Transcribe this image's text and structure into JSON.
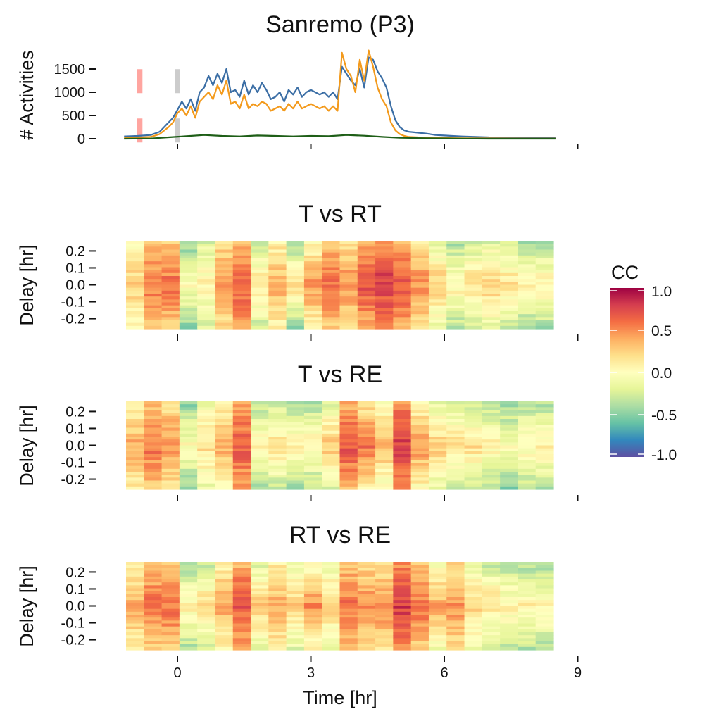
{
  "chart_data": [
    {
      "type": "line",
      "title": "Sanremo (P3)",
      "ylabel": "# Activities",
      "xlim": [
        -1.2,
        8.5
      ],
      "ylim": [
        -80,
        1850
      ],
      "yticks": [
        0,
        500,
        1000,
        1500
      ],
      "ytick_labels": [
        "0",
        "500",
        "1000",
        "1500"
      ],
      "xticks": [
        0,
        3,
        6,
        9
      ],
      "grid": false,
      "markers": [
        {
          "x": -0.85,
          "color": "#ffa5a0",
          "style": "dashed"
        },
        {
          "x": 0.0,
          "color": "#cccccc",
          "style": "dashed"
        }
      ],
      "series": [
        {
          "color": "#3b6ea5",
          "x": [
            -1.2,
            -0.9,
            -0.6,
            -0.4,
            -0.2,
            -0.1,
            0.0,
            0.1,
            0.2,
            0.3,
            0.4,
            0.5,
            0.6,
            0.7,
            0.8,
            0.9,
            1.0,
            1.1,
            1.2,
            1.3,
            1.4,
            1.5,
            1.6,
            1.7,
            1.8,
            1.9,
            2.0,
            2.1,
            2.2,
            2.3,
            2.4,
            2.5,
            2.6,
            2.7,
            2.8,
            2.9,
            3.0,
            3.1,
            3.2,
            3.3,
            3.4,
            3.5,
            3.6,
            3.7,
            3.8,
            3.9,
            4.0,
            4.1,
            4.2,
            4.3,
            4.4,
            4.5,
            4.6,
            4.7,
            4.8,
            4.9,
            5.0,
            5.1,
            5.2,
            5.4,
            5.6,
            5.8,
            6.0,
            6.4,
            7.0,
            7.5,
            8.0,
            8.5
          ],
          "y": [
            50,
            60,
            80,
            150,
            350,
            450,
            620,
            800,
            650,
            850,
            600,
            1000,
            1100,
            1350,
            1150,
            1400,
            1200,
            1500,
            1000,
            1050,
            900,
            1250,
            950,
            1150,
            1000,
            1200,
            1050,
            850,
            900,
            1000,
            800,
            1050,
            950,
            1100,
            900,
            1000,
            1050,
            1000,
            950,
            1000,
            900,
            1000,
            850,
            1550,
            1400,
            1250,
            1150,
            1500,
            1100,
            1750,
            1700,
            1450,
            1300,
            1100,
            700,
            400,
            250,
            180,
            150,
            130,
            110,
            80,
            70,
            50,
            30,
            25,
            20,
            15
          ]
        },
        {
          "color": "#f39a1c",
          "x": [
            -1.2,
            -0.9,
            -0.6,
            -0.4,
            -0.2,
            -0.1,
            0.0,
            0.1,
            0.2,
            0.3,
            0.4,
            0.5,
            0.6,
            0.7,
            0.8,
            0.9,
            1.0,
            1.1,
            1.2,
            1.3,
            1.4,
            1.5,
            1.6,
            1.7,
            1.8,
            1.9,
            2.0,
            2.1,
            2.2,
            2.3,
            2.4,
            2.5,
            2.6,
            2.7,
            2.8,
            2.9,
            3.0,
            3.1,
            3.2,
            3.3,
            3.4,
            3.5,
            3.6,
            3.7,
            3.8,
            3.9,
            4.0,
            4.1,
            4.2,
            4.3,
            4.4,
            4.5,
            4.6,
            4.7,
            4.8,
            4.9,
            5.0,
            5.1,
            5.2,
            5.4,
            5.6,
            5.8,
            6.0,
            6.4,
            7.0,
            7.5,
            8.0,
            8.5
          ],
          "y": [
            20,
            25,
            40,
            100,
            250,
            350,
            550,
            650,
            500,
            700,
            450,
            800,
            900,
            1000,
            850,
            1150,
            950,
            1250,
            750,
            800,
            650,
            950,
            650,
            750,
            700,
            800,
            750,
            600,
            650,
            700,
            600,
            750,
            650,
            800,
            650,
            700,
            750,
            700,
            650,
            700,
            600,
            700,
            600,
            1850,
            1500,
            1350,
            1000,
            1700,
            1250,
            1900,
            1550,
            1100,
            850,
            700,
            350,
            180,
            100,
            60,
            40,
            30,
            25,
            20,
            15,
            10,
            8,
            6,
            5,
            5
          ]
        },
        {
          "color": "#1e5e17",
          "x": [
            -1.2,
            -0.6,
            -0.2,
            0.2,
            0.6,
            1.0,
            1.4,
            1.8,
            2.2,
            2.6,
            3.0,
            3.4,
            3.8,
            4.2,
            4.6,
            5.0,
            5.6,
            6.2,
            7.0,
            8.5
          ],
          "y": [
            0,
            5,
            30,
            55,
            80,
            60,
            50,
            70,
            60,
            50,
            60,
            55,
            80,
            65,
            40,
            20,
            10,
            5,
            0,
            0
          ]
        }
      ]
    },
    {
      "type": "heatmap",
      "title": "T vs RT",
      "ylabel": "Delay [hr]",
      "yticks": [
        0.2,
        0.1,
        0.0,
        -0.1,
        -0.2
      ],
      "ytick_labels": [
        "0.2 ",
        "0.1 ",
        "0.0 ",
        "-0.1 ",
        "-0.2 "
      ],
      "xticks": [
        0,
        3,
        6,
        9
      ],
      "columns_center_cc": [
        0.3,
        0.6,
        0.6,
        0.0,
        0.1,
        0.5,
        0.7,
        0.2,
        0.4,
        0.2,
        0.5,
        0.6,
        0.5,
        0.7,
        0.8,
        0.7,
        0.5,
        0.3,
        0.1,
        0.2,
        0.3,
        0.2,
        0.1,
        0.1
      ],
      "columns_spread": [
        0.2,
        0.2,
        0.2,
        0.3,
        0.2,
        0.2,
        0.2,
        0.3,
        0.2,
        0.4,
        0.3,
        0.2,
        0.2,
        0.2,
        0.2,
        0.2,
        0.2,
        0.3,
        0.3,
        0.3,
        0.3,
        0.3,
        0.3,
        0.3
      ]
    },
    {
      "type": "heatmap",
      "title": "T vs RE",
      "ylabel": "Delay [hr]",
      "yticks": [
        0.2,
        0.1,
        0.0,
        -0.1,
        -0.2
      ],
      "ytick_labels": [
        "0.2 ",
        "0.1 ",
        "0.0 ",
        "-0.1 ",
        "-0.2 "
      ],
      "xticks": [
        0,
        3,
        6,
        9
      ],
      "columns_center_cc": [
        0.4,
        0.6,
        0.5,
        0.0,
        0.2,
        0.4,
        0.7,
        0.1,
        0.2,
        0.1,
        0.1,
        0.3,
        0.7,
        0.6,
        0.4,
        0.8,
        0.5,
        0.3,
        0.2,
        0.2,
        0.1,
        0.0,
        0.1,
        0.1
      ],
      "columns_spread": [
        0.2,
        0.2,
        0.2,
        0.3,
        0.2,
        0.2,
        0.2,
        0.3,
        0.3,
        0.3,
        0.3,
        0.3,
        0.2,
        0.3,
        0.3,
        0.2,
        0.3,
        0.3,
        0.3,
        0.3,
        0.3,
        0.3,
        0.3,
        0.3
      ]
    },
    {
      "type": "heatmap",
      "title": "RT vs RE",
      "ylabel": "Delay [hr]",
      "yticks": [
        0.2,
        0.1,
        0.0,
        -0.1,
        -0.2
      ],
      "ytick_labels": [
        "0.2 ",
        "0.1 ",
        "0.0 ",
        "-0.1 ",
        "-0.2 "
      ],
      "xlabel": "Time [hr]",
      "xticks": [
        0,
        3,
        6,
        9
      ],
      "xtick_labels": [
        "0",
        "3",
        "6",
        "9"
      ],
      "columns_center_cc": [
        0.4,
        0.6,
        0.6,
        0.1,
        0.2,
        0.4,
        0.7,
        0.3,
        0.4,
        0.3,
        0.5,
        0.3,
        0.6,
        0.5,
        0.5,
        0.8,
        0.6,
        0.4,
        0.5,
        0.3,
        0.2,
        0.1,
        0.1,
        0.1
      ],
      "columns_spread": [
        0.2,
        0.2,
        0.2,
        0.3,
        0.3,
        0.2,
        0.2,
        0.3,
        0.2,
        0.3,
        0.3,
        0.3,
        0.2,
        0.2,
        0.2,
        0.2,
        0.2,
        0.3,
        0.2,
        0.3,
        0.3,
        0.3,
        0.3,
        0.3
      ]
    }
  ],
  "colorbar": {
    "title": "CC",
    "range": [
      -1.0,
      1.0
    ],
    "ticks": [
      1.0,
      0.5,
      0.0,
      -0.5,
      -1.0
    ],
    "tick_labels": [
      "1.0",
      "0.5",
      "0.0",
      "-0.5",
      "-1.0"
    ],
    "palette": [
      "#5e4fa2",
      "#3288bd",
      "#66c2a5",
      "#abdda4",
      "#e6f598",
      "#ffffbf",
      "#fee08b",
      "#fdae61",
      "#f46d43",
      "#d53e4f",
      "#9e0142"
    ]
  }
}
